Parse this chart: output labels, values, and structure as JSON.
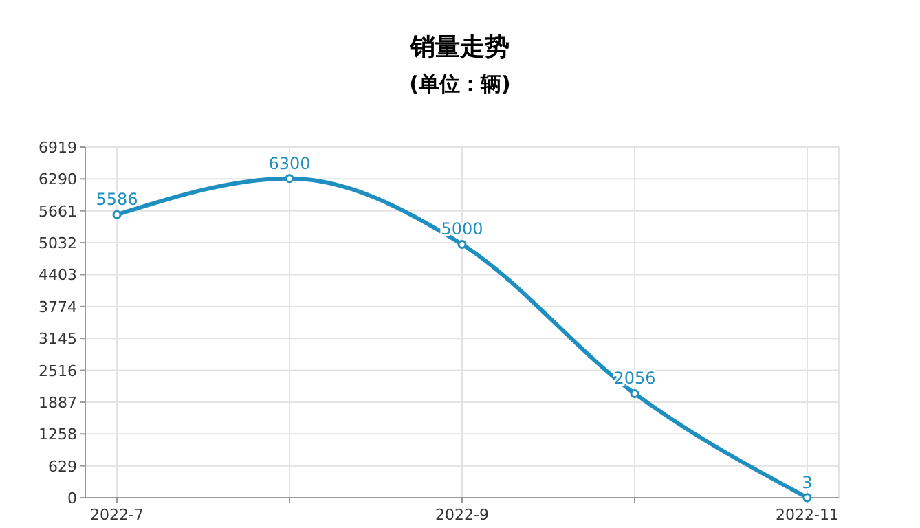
{
  "chart_data": {
    "type": "line",
    "title": "销量走势",
    "subtitle": "(单位：辆)",
    "categories": [
      "2022-7",
      null,
      "2022-9",
      null,
      "2022-11"
    ],
    "series": [
      {
        "color": "#1f8fbf",
        "values": [
          5586,
          6300,
          5000,
          2056,
          3
        ]
      }
    ],
    "ylim": [
      0,
      6919
    ],
    "yticks": [
      0,
      629,
      1258,
      1887,
      2516,
      3145,
      3774,
      4403,
      5032,
      5661,
      6290,
      6919
    ],
    "grid": true,
    "marker": "circle",
    "line_style": "solid",
    "data_labels": true
  }
}
